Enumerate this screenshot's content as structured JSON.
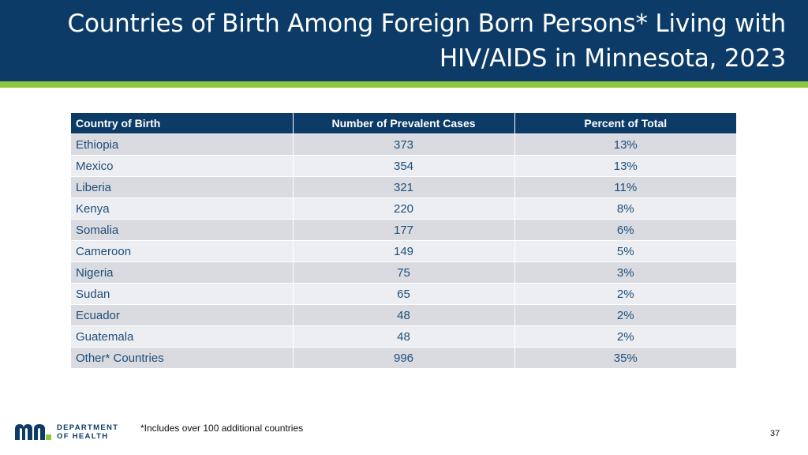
{
  "slide": {
    "title_line1": "Countries of Birth Among Foreign Born Persons* Living with",
    "title_line2": "HIV/AIDS in Minnesota, 2023",
    "footnote": "*Includes over 100 additional countries",
    "page_number": "37"
  },
  "logo": {
    "line1": "DEPARTMENT",
    "line2": "OF HEALTH",
    "colors": {
      "blue": "#0b3b66",
      "green": "#8dc63f"
    }
  },
  "table": {
    "headers": [
      "Country of Birth",
      "Number of Prevalent Cases",
      "Percent of Total"
    ],
    "rows": [
      [
        "Ethiopia",
        "373",
        "13%"
      ],
      [
        "Mexico",
        "354",
        "13%"
      ],
      [
        "Liberia",
        "321",
        "11%"
      ],
      [
        "Kenya",
        "220",
        "8%"
      ],
      [
        "Somalia",
        "177",
        "6%"
      ],
      [
        "Cameroon",
        "149",
        "5%"
      ],
      [
        "Nigeria",
        "75",
        "3%"
      ],
      [
        "Sudan",
        "65",
        "2%"
      ],
      [
        "Ecuador",
        "48",
        "2%"
      ],
      [
        "Guatemala",
        "48",
        "2%"
      ],
      [
        "Other* Countries",
        "996",
        "35%"
      ]
    ]
  },
  "colors": {
    "header_bg": "#0b3b66",
    "accent_green": "#8dc63f",
    "row_dark": "#d9dbe0",
    "row_light": "#eceef1",
    "cell_text": "#1f4e79"
  }
}
